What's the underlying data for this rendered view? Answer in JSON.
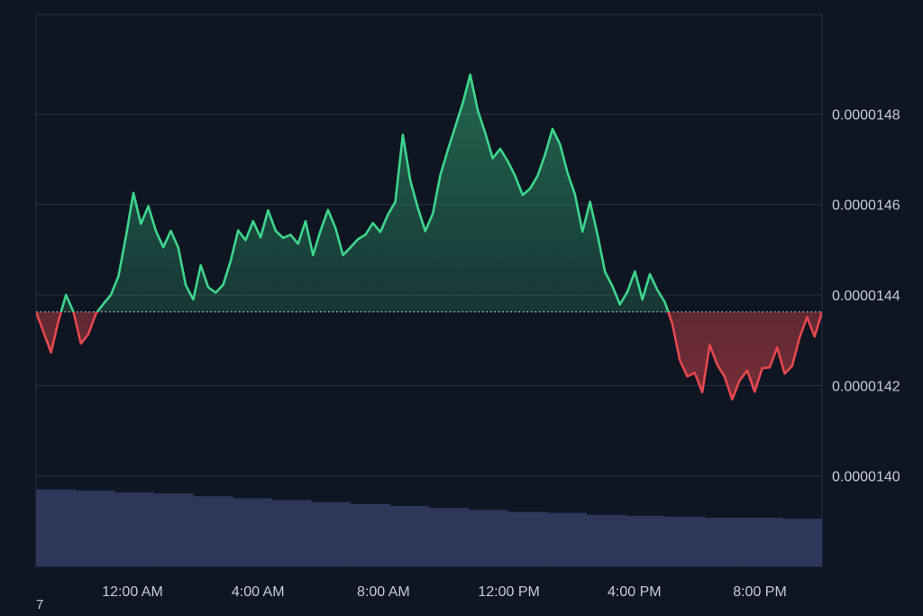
{
  "chart_data": {
    "type": "area",
    "baseline": 1.43625e-05,
    "ylim": [
      1.38e-05,
      1.502e-05
    ],
    "y_ticks": [
      {
        "value": 1.48e-05,
        "label": "0.0000148"
      },
      {
        "value": 1.46e-05,
        "label": "0.0000146"
      },
      {
        "value": 1.44e-05,
        "label": "0.0000144"
      },
      {
        "value": 1.42e-05,
        "label": "0.0000142"
      },
      {
        "value": 1.4e-05,
        "label": "0.0000140"
      }
    ],
    "x_ticks": [
      "12:00 AM",
      "4:00 AM",
      "8:00 AM",
      "12:00 PM",
      "4:00 PM",
      "8:00 PM"
    ],
    "price_series": [
      [
        1.43625e-05,
        1.43177e-05,
        1.42728e-05,
        1.4343e-05,
        1.44e-05,
        1.43625e-05,
        1.42924e-05,
        1.43138e-05,
        1.43586e-05,
        1.438e-05,
        1.44e-05,
        1.4441e-05,
        1.45288e-05,
        1.46255e-05
      ],
      [
        1.45572e-05,
        1.45962e-05,
        1.45416e-05,
        1.45055e-05,
        1.45416e-05,
        1.45045e-05,
        1.44215e-05,
        1.43898e-05,
        1.44655e-05,
        1.44167e-05,
        1.4405e-05,
        1.44225e-05,
        1.44752e-05,
        1.45425e-05
      ],
      [
        1.4521e-05,
        1.4563e-05,
        1.4527e-05,
        1.4587e-05,
        1.4542e-05,
        1.4526e-05,
        1.4533e-05,
        1.4513e-05,
        1.4563e-05,
        1.4488e-05,
        1.4542e-05,
        1.4588e-05,
        1.4548e-05,
        1.4488e-05
      ],
      [
        1.4505e-05,
        1.4523e-05,
        1.4533e-05,
        1.4559e-05,
        1.4539e-05,
        1.4577e-05,
        1.4606e-05,
        1.4754e-05,
        1.4653e-05,
        1.4593e-05,
        1.4541e-05,
        1.458e-05,
        1.4665e-05,
        1.472e-05
      ],
      [
        1.4772e-05,
        1.4824e-05,
        1.4887e-05,
        1.4808e-05,
        1.4758e-05,
        1.4702e-05,
        1.4723e-05,
        1.4696e-05,
        1.4663e-05,
        1.4621e-05,
        1.4635e-05,
        1.4663e-05,
        1.471e-05,
        1.4767e-05
      ],
      [
        1.4733e-05,
        1.467e-05,
        1.4622e-05,
        1.454e-05,
        1.4606e-05,
        1.4533e-05,
        1.4451e-05,
        1.4419e-05,
        1.4379e-05,
        1.4407e-05,
        1.4452e-05,
        1.439e-05,
        1.4446e-05,
        1.4411e-05
      ],
      [
        1.4384e-05,
        1.4336e-05,
        1.4256e-05,
        1.422e-05,
        1.4228e-05,
        1.4185e-05,
        1.4289e-05,
        1.4246e-05,
        1.4219e-05,
        1.4169e-05,
        1.4211e-05,
        1.4233e-05,
        1.4186e-05,
        1.4238e-05
      ],
      [
        1.424e-05,
        1.4284e-05,
        1.4226e-05,
        1.4243e-05,
        1.4306e-05,
        1.4351e-05,
        1.4308e-05,
        1.43625e-05
      ]
    ],
    "volume_levels": [
      0.79,
      0.78,
      0.76,
      0.75,
      0.72,
      0.7,
      0.68,
      0.66,
      0.64,
      0.62,
      0.6,
      0.58,
      0.56,
      0.55,
      0.53,
      0.52,
      0.51,
      0.5,
      0.5,
      0.49
    ],
    "colors": {
      "up": "#3dd68c",
      "down": "#e5484d",
      "up_fill": "#3dd68c",
      "down_fill": "#e5484d",
      "volume": "#2c3759",
      "grid": "#273042",
      "baseline": "#d8d8d8",
      "background": "#0f1523"
    },
    "grid": true
  },
  "corner_label": "7"
}
